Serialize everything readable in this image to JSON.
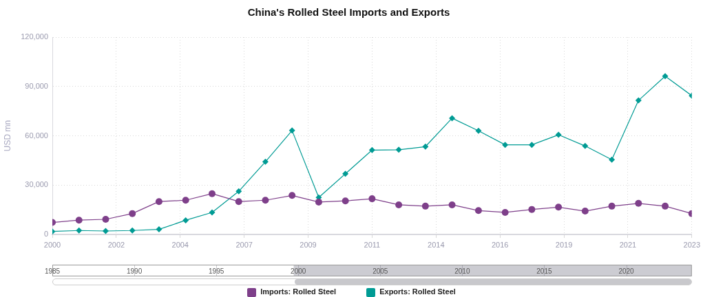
{
  "chart_data": [
    {
      "type": "line",
      "title": "China's Rolled Steel Imports and Exports",
      "ylabel": "USD mn",
      "x": [
        1999.72,
        2000.7,
        2001.68,
        2002.66,
        2003.64,
        2004.62,
        2005.59,
        2006.57,
        2007.55,
        2008.53,
        2009.51,
        2010.49,
        2011.47,
        2012.45,
        2013.43,
        2014.41,
        2015.38,
        2016.36,
        2017.34,
        2018.32,
        2019.3,
        2020.28,
        2021.26,
        2022.24,
        2023.22
      ],
      "xlim": [
        1999.72,
        2023.22
      ],
      "xticks": [
        {
          "value": 1999.72,
          "label": "2000"
        },
        {
          "value": 2002.07,
          "label": "2002"
        },
        {
          "value": 2004.42,
          "label": "2004"
        },
        {
          "value": 2006.77,
          "label": "2007"
        },
        {
          "value": 2009.12,
          "label": "2009"
        },
        {
          "value": 2011.47,
          "label": "2011"
        },
        {
          "value": 2013.82,
          "label": "2014"
        },
        {
          "value": 2016.17,
          "label": "2016"
        },
        {
          "value": 2018.52,
          "label": "2019"
        },
        {
          "value": 2020.87,
          "label": "2021"
        },
        {
          "value": 2023.22,
          "label": "2023"
        }
      ],
      "ylim": [
        0,
        120000
      ],
      "yticks": [
        {
          "value": 0,
          "label": "0"
        },
        {
          "value": 30000,
          "label": "30,000"
        },
        {
          "value": 60000,
          "label": "60,000"
        },
        {
          "value": 90000,
          "label": "90,000"
        },
        {
          "value": 120000,
          "label": "120,000"
        }
      ],
      "x2lim": [
        1985,
        2024
      ],
      "x2ticks": [
        1985,
        1990,
        1995,
        2000,
        2005,
        2010,
        2015,
        2020
      ],
      "grid": true,
      "legend": "bottom",
      "series": [
        {
          "name": "Imports: Rolled Steel",
          "color": "#7e3f8a",
          "marker": "circle",
          "values": [
            7300,
            8700,
            9200,
            12700,
            20000,
            20800,
            24800,
            20000,
            20800,
            23700,
            19700,
            20400,
            21700,
            18000,
            17200,
            18000,
            14500,
            13400,
            15200,
            16600,
            14200,
            17200,
            18900,
            17200,
            12700
          ]
        },
        {
          "name": "Exports: Rolled Steel",
          "color": "#009b94",
          "marker": "diamond",
          "values": [
            1800,
            2400,
            2100,
            2400,
            3100,
            8600,
            13400,
            26200,
            44200,
            63200,
            22500,
            36900,
            51300,
            51500,
            53400,
            70700,
            63000,
            54500,
            54500,
            60600,
            53800,
            45500,
            81500,
            96300,
            84400
          ]
        }
      ]
    }
  ]
}
